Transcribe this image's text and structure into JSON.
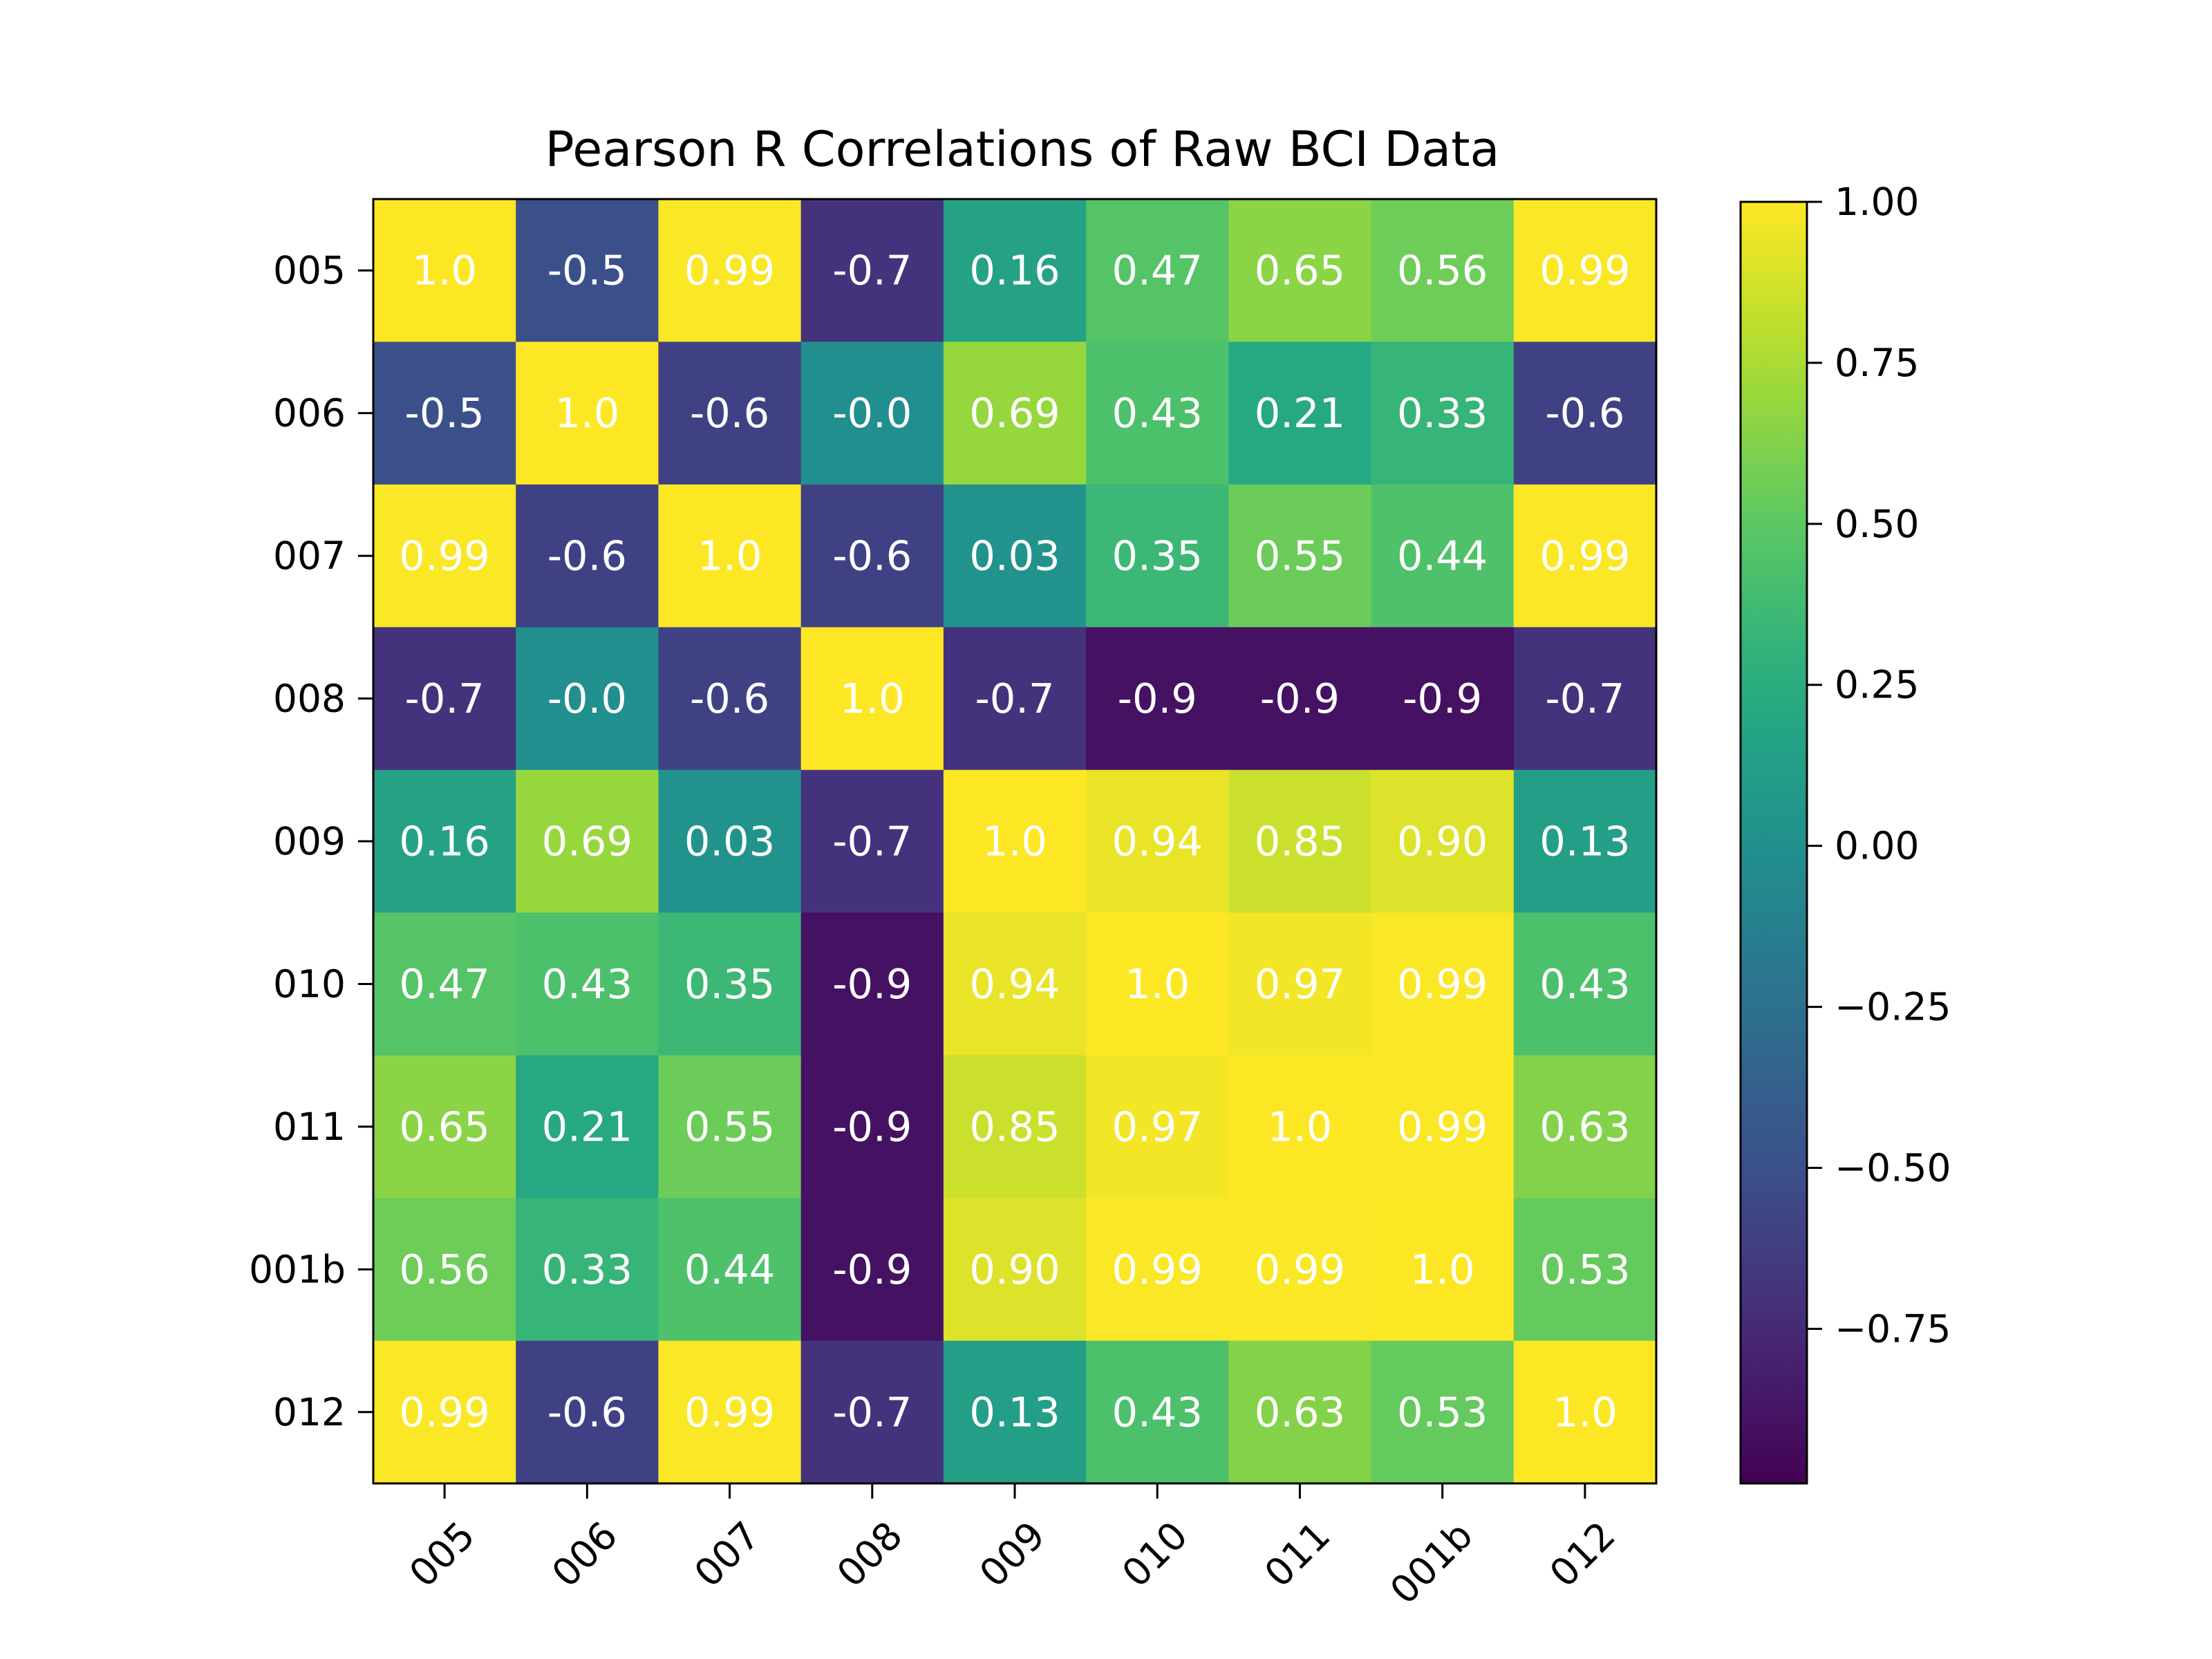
{
  "chart_data": {
    "type": "heatmap",
    "title": "Pearson R Correlations of Raw BCI Data",
    "xlabel": "",
    "ylabel": "",
    "rows": [
      "005",
      "006",
      "007",
      "008",
      "009",
      "010",
      "011",
      "001b",
      "012"
    ],
    "columns": [
      "005",
      "006",
      "007",
      "008",
      "009",
      "010",
      "011",
      "001b",
      "012"
    ],
    "values": [
      [
        1.0,
        -0.5,
        0.99,
        -0.7,
        0.16,
        0.47,
        0.65,
        0.56,
        0.99
      ],
      [
        -0.5,
        1.0,
        -0.6,
        -0.0,
        0.69,
        0.43,
        0.21,
        0.33,
        -0.6
      ],
      [
        0.99,
        -0.6,
        1.0,
        -0.6,
        0.03,
        0.35,
        0.55,
        0.44,
        0.99
      ],
      [
        -0.7,
        -0.0,
        -0.6,
        1.0,
        -0.7,
        -0.9,
        -0.9,
        -0.9,
        -0.7
      ],
      [
        0.16,
        0.69,
        0.03,
        -0.7,
        1.0,
        0.94,
        0.85,
        0.9,
        0.13
      ],
      [
        0.47,
        0.43,
        0.35,
        -0.9,
        0.94,
        1.0,
        0.97,
        0.99,
        0.43
      ],
      [
        0.65,
        0.21,
        0.55,
        -0.9,
        0.85,
        0.97,
        1.0,
        0.99,
        0.63
      ],
      [
        0.56,
        0.33,
        0.44,
        -0.9,
        0.9,
        0.99,
        0.99,
        1.0,
        0.53
      ],
      [
        0.99,
        -0.6,
        0.99,
        -0.7,
        0.13,
        0.43,
        0.63,
        0.53,
        1.0
      ]
    ],
    "labels": [
      [
        "1.0",
        "-0.5",
        "0.99",
        "-0.7",
        "0.16",
        "0.47",
        "0.65",
        "0.56",
        "0.99"
      ],
      [
        "-0.5",
        "1.0",
        "-0.6",
        "-0.0",
        "0.69",
        "0.43",
        "0.21",
        "0.33",
        "-0.6"
      ],
      [
        "0.99",
        "-0.6",
        "1.0",
        "-0.6",
        "0.03",
        "0.35",
        "0.55",
        "0.44",
        "0.99"
      ],
      [
        "-0.7",
        "-0.0",
        "-0.6",
        "1.0",
        "-0.7",
        "-0.9",
        "-0.9",
        "-0.9",
        "-0.7"
      ],
      [
        "0.16",
        "0.69",
        "0.03",
        "-0.7",
        "1.0",
        "0.94",
        "0.85",
        "0.90",
        "0.13"
      ],
      [
        "0.47",
        "0.43",
        "0.35",
        "-0.9",
        "0.94",
        "1.0",
        "0.97",
        "0.99",
        "0.43"
      ],
      [
        "0.65",
        "0.21",
        "0.55",
        "-0.9",
        "0.85",
        "0.97",
        "1.0",
        "0.99",
        "0.63"
      ],
      [
        "0.56",
        "0.33",
        "0.44",
        "-0.9",
        "0.90",
        "0.99",
        "0.99",
        "1.0",
        "0.53"
      ],
      [
        "0.99",
        "-0.6",
        "0.99",
        "-0.7",
        "0.13",
        "0.43",
        "0.63",
        "0.53",
        "1.0"
      ]
    ],
    "colormap": "viridis",
    "colorbar": {
      "vmin": -0.99,
      "vmax": 1.0,
      "ticks": [
        1.0,
        0.75,
        0.5,
        0.25,
        0.0,
        -0.25,
        -0.5,
        -0.75
      ],
      "tick_labels": [
        "1.00",
        "0.75",
        "0.50",
        "0.25",
        "0.00",
        "−0.25",
        "−0.50",
        "−0.75"
      ]
    },
    "grid": false,
    "legend": "none"
  }
}
